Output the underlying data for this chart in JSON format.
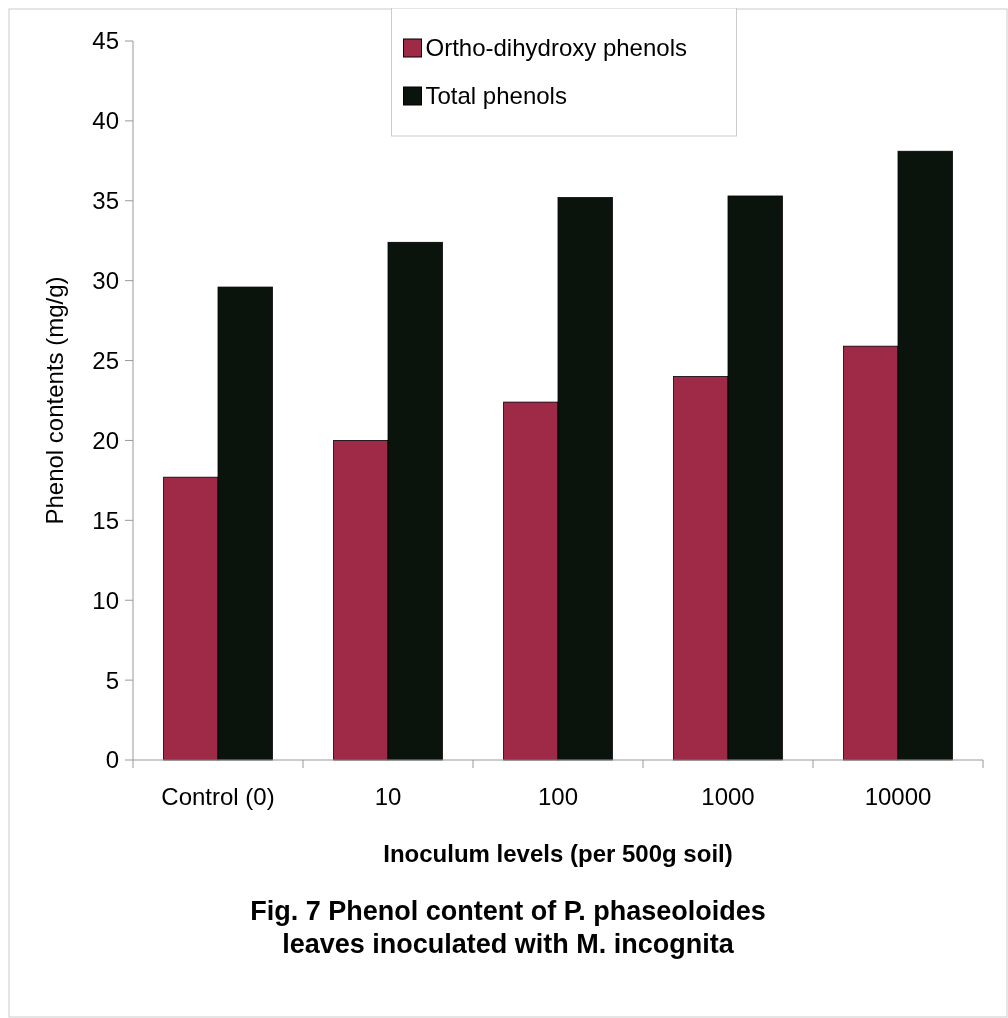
{
  "chart_data": {
    "type": "bar",
    "title": "Fig. 7 Phenol content of P. phaseoloides leaves inoculated with M. incognita",
    "xlabel": "Inoculum levels (per 500g soil)",
    "ylabel": "Phenol contents (mg/g)",
    "categories": [
      "Control (0)",
      "10",
      "100",
      "1000",
      "10000"
    ],
    "series": [
      {
        "name": "Ortho-dihydroxy phenols",
        "color": "#9e2a48",
        "values": [
          17.7,
          20.0,
          22.4,
          24.0,
          25.9
        ]
      },
      {
        "name": "Total phenols",
        "color": "#0a140c",
        "values": [
          29.6,
          32.4,
          35.2,
          35.3,
          38.1
        ]
      }
    ],
    "ylim": [
      0,
      45
    ],
    "yticks": [
      0,
      5,
      10,
      15,
      20,
      25,
      30,
      35,
      40,
      45
    ],
    "grid": false,
    "legend": "top"
  }
}
